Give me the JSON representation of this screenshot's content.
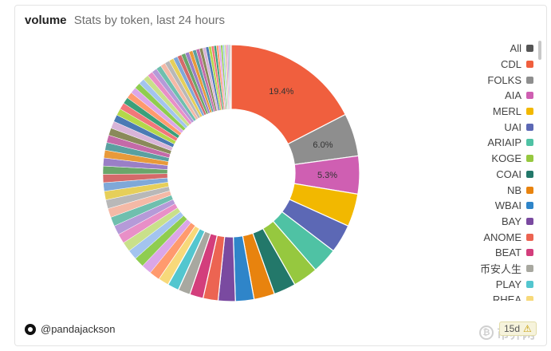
{
  "header": {
    "title": "volume",
    "subtitle": "Stats by token, last 24 hours"
  },
  "footer": {
    "author": "@pandajackson",
    "age": "15d"
  },
  "watermark": {
    "text": "币界网"
  },
  "chart_data": {
    "type": "pie",
    "donut": true,
    "title": "volume",
    "subtitle": "Stats by token, last 24 hours",
    "legend_position": "right",
    "legend": [
      {
        "label": "All",
        "color": "#555555"
      },
      {
        "label": "CDL",
        "color": "#f05f3e"
      },
      {
        "label": "FOLKS",
        "color": "#8e8e8e"
      },
      {
        "label": "AIA",
        "color": "#cf5fb2"
      },
      {
        "label": "MERL",
        "color": "#f2b800"
      },
      {
        "label": "UAI",
        "color": "#5c68b5"
      },
      {
        "label": "ARIAIP",
        "color": "#4fc2a4"
      },
      {
        "label": "KOGE",
        "color": "#96c83f"
      },
      {
        "label": "COAI",
        "color": "#23786a"
      },
      {
        "label": "NB",
        "color": "#e8830e"
      },
      {
        "label": "WBAI",
        "color": "#2f85c9"
      },
      {
        "label": "BAY",
        "color": "#7a4aa0"
      },
      {
        "label": "ANOME",
        "color": "#ec6452"
      },
      {
        "label": "BEAT",
        "color": "#d33e7c"
      },
      {
        "label": "币安人生",
        "color": "#a8a8a0"
      },
      {
        "label": "PLAY",
        "color": "#53c6cf"
      },
      {
        "label": "RHEA",
        "color": "#f7d97a"
      }
    ],
    "slices": [
      {
        "label": "CDL",
        "value": 19.4,
        "color": "#f05f3e",
        "data_label": "19.4%"
      },
      {
        "label": "FOLKS",
        "value": 6.0,
        "color": "#8e8e8e",
        "data_label": "6.0%"
      },
      {
        "label": "AIA",
        "value": 5.3,
        "color": "#cf5fb2",
        "data_label": "5.3%"
      },
      {
        "label": "MERL",
        "value": 4.6,
        "color": "#f2b800"
      },
      {
        "label": "UAI",
        "value": 4.0,
        "color": "#5c68b5"
      },
      {
        "label": "ARIAIP",
        "value": 3.6,
        "color": "#4fc2a4"
      },
      {
        "label": "KOGE",
        "value": 3.5,
        "color": "#96c83f"
      },
      {
        "label": "COAI",
        "value": 3.1,
        "color": "#23786a"
      },
      {
        "label": "NB",
        "value": 2.9,
        "color": "#e8830e"
      },
      {
        "label": "WBAI",
        "value": 2.6,
        "color": "#2f85c9"
      },
      {
        "label": "BAY",
        "value": 2.4,
        "color": "#7a4aa0"
      },
      {
        "label": "ANOME",
        "value": 2.1,
        "color": "#ec6452"
      },
      {
        "label": "BEAT",
        "value": 1.9,
        "color": "#d33e7c"
      },
      {
        "label": "币安人生",
        "value": 1.7,
        "color": "#a8a8a0"
      },
      {
        "label": "PLAY",
        "value": 1.6,
        "color": "#53c6cf"
      },
      {
        "label": "RHEA",
        "value": 1.5,
        "color": "#f7d97a"
      }
    ],
    "other_slices": {
      "count": 58,
      "start_value": 1.45,
      "end_value": 0.1,
      "palette": [
        "#ff9a6e",
        "#dba6e8",
        "#8fcd50",
        "#a3c4ef",
        "#c9e08a",
        "#e88fc7",
        "#b59ad8",
        "#6fbfae",
        "#f4b9a6",
        "#b8b8b8",
        "#e6cf5a",
        "#7fa8d8",
        "#d46a6a",
        "#6aa66a",
        "#9a7fc6",
        "#e89a3a",
        "#5aa0a0",
        "#c46aa8",
        "#8a8a5a",
        "#d8b4d8",
        "#4a7ab4",
        "#b4d84a",
        "#f2777a",
        "#3aa07a"
      ]
    }
  }
}
